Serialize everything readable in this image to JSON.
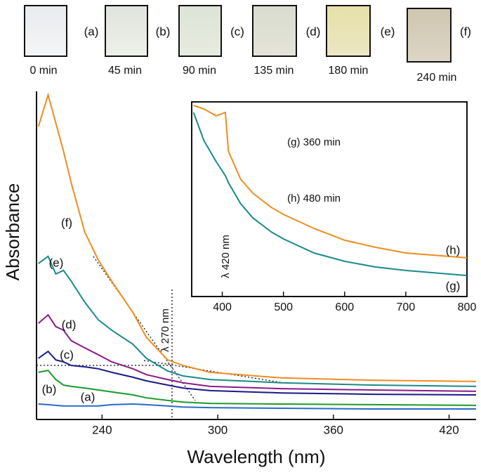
{
  "photos": [
    {
      "letter": "(a)",
      "time": "0 min"
    },
    {
      "letter": "(b)",
      "time": "45 min"
    },
    {
      "letter": "(c)",
      "time": "90 min"
    },
    {
      "letter": "(d)",
      "time": "135 min"
    },
    {
      "letter": "(e)",
      "time": "180 min"
    },
    {
      "letter": "(f)",
      "time": "240 min"
    }
  ],
  "chart_data": [
    {
      "type": "line",
      "xlabel": "Wavelength (nm)",
      "ylabel": "Absorbance",
      "annotations": [
        "λ 270 nm"
      ],
      "x": [
        207,
        212,
        216,
        220,
        224,
        231,
        238,
        245,
        256,
        263,
        274,
        282,
        296,
        333,
        380,
        434
      ],
      "xlim": [
        206,
        434
      ],
      "xticks": [
        240,
        300,
        360,
        420
      ],
      "ylim": [
        0,
        100
      ],
      "grid": false,
      "series": [
        {
          "name": "(a)",
          "color": "#2a6ac8",
          "values": [
            4.3,
            4.1,
            3.9,
            3.7,
            3.7,
            3.7,
            3.7,
            4.1,
            4.3,
            4.1,
            3.7,
            3.4,
            3.2,
            3.0,
            2.8,
            2.8
          ]
        },
        {
          "name": "(b)",
          "color": "#1c9a2a",
          "values": [
            14.0,
            14.6,
            11.8,
            10.1,
            9.7,
            9.2,
            8.6,
            8.0,
            7.1,
            6.2,
            5.4,
            4.9,
            4.5,
            4.3,
            4.1,
            3.9
          ]
        },
        {
          "name": "(c)",
          "color": "#1a1a8a",
          "values": [
            18.3,
            20.4,
            17.8,
            17.2,
            16.1,
            15.7,
            15.1,
            14.0,
            12.5,
            11.4,
            10.1,
            9.2,
            8.4,
            7.7,
            7.3,
            7.1
          ]
        },
        {
          "name": "(d)",
          "color": "#8a1a8a",
          "values": [
            29.0,
            31.6,
            28.0,
            26.9,
            23.7,
            21.5,
            19.4,
            17.2,
            15.1,
            13.3,
            11.8,
            10.8,
            9.7,
            9.0,
            8.6,
            8.2
          ]
        },
        {
          "name": "(e)",
          "color": "#1a8a8a",
          "values": [
            47.3,
            49.5,
            44.1,
            45.2,
            41.9,
            35.5,
            30.1,
            26.9,
            22.6,
            18.3,
            14.4,
            12.9,
            11.8,
            10.8,
            10.1,
            9.7
          ]
        },
        {
          "name": "(f)",
          "color": "#f08c1e",
          "values": [
            89.2,
            98.9,
            90.3,
            81.7,
            72.0,
            57.0,
            48.4,
            41.9,
            32.3,
            24.7,
            17.8,
            16.1,
            14.0,
            12.3,
            11.6,
            11.2
          ]
        }
      ]
    },
    {
      "type": "line",
      "annotations": [
        "λ 420 nm",
        "(g) 360 min",
        "(h) 480 min"
      ],
      "x": [
        353,
        370,
        390,
        405,
        410,
        430,
        450,
        480,
        500,
        550,
        600,
        650,
        700,
        800
      ],
      "xlim": [
        350,
        800
      ],
      "xticks": [
        400,
        500,
        600,
        700,
        800
      ],
      "ylim": [
        0,
        100
      ],
      "grid": false,
      "series": [
        {
          "name": "(g)",
          "color": "#1a8a8a",
          "values": [
            94.6,
            80.1,
            69.3,
            62.1,
            58.5,
            47.7,
            40.4,
            33.2,
            29.6,
            22.4,
            18.1,
            15.2,
            13.4,
            10.8
          ]
        },
        {
          "name": "(h)",
          "color": "#f08c1e",
          "values": [
            98.2,
            96.4,
            92.8,
            94.6,
            74.7,
            60.3,
            53.1,
            45.8,
            42.2,
            35.0,
            28.9,
            25.3,
            22.4,
            19.9
          ]
        }
      ]
    }
  ]
}
